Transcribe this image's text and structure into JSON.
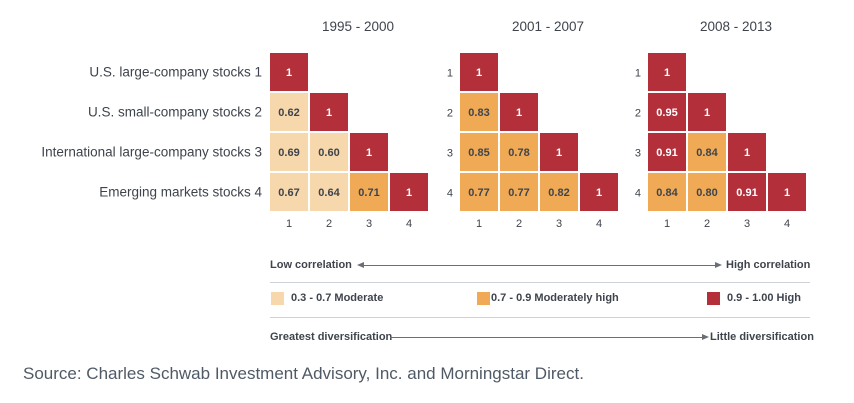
{
  "chart_data": {
    "type": "heatmap",
    "panels": [
      {
        "title": "1995 - 2000",
        "row_labels": [
          "U.S. large-company stocks 1",
          "U.S. small-company stocks 2",
          "International large-company stocks 3",
          "Emerging markets stocks 4"
        ],
        "col_labels": [
          "1",
          "2",
          "3",
          "4"
        ],
        "matrix": [
          [
            "1"
          ],
          [
            "0.62",
            "1"
          ],
          [
            "0.69",
            "0.60",
            "1"
          ],
          [
            "0.67",
            "0.64",
            "0.71",
            "1"
          ]
        ]
      },
      {
        "title": "2001 - 2007",
        "row_labels": [
          "1",
          "2",
          "3",
          "4"
        ],
        "col_labels": [
          "1",
          "2",
          "3",
          "4"
        ],
        "matrix": [
          [
            "1"
          ],
          [
            "0.83",
            "1"
          ],
          [
            "0.85",
            "0.78",
            "1"
          ],
          [
            "0.77",
            "0.77",
            "0.82",
            "1"
          ]
        ]
      },
      {
        "title": "2008 - 2013",
        "row_labels": [
          "1",
          "2",
          "3",
          "4"
        ],
        "col_labels": [
          "1",
          "2",
          "3",
          "4"
        ],
        "matrix": [
          [
            "1"
          ],
          [
            "0.95",
            "1"
          ],
          [
            "0.91",
            "0.84",
            "1"
          ],
          [
            "0.84",
            "0.80",
            "0.91",
            "1"
          ]
        ]
      }
    ],
    "legend": [
      {
        "label": "0.3 - 0.7 Moderate",
        "color": "#f7d7ac",
        "min": 0.3,
        "max": 0.7
      },
      {
        "label": "0.7 - 0.9  Moderately high",
        "color": "#f0aa55",
        "min": 0.7,
        "max": 0.9
      },
      {
        "label": "0.9 - 1.00  High",
        "color": "#b3303a",
        "min": 0.9,
        "max": 1.0
      }
    ]
  },
  "scale": {
    "correlation_low": "Low correlation",
    "correlation_high": "High correlation",
    "diversification_high": "Greatest diversification",
    "diversification_low": "Little diversification"
  },
  "source": "Source: Charles Schwab Investment Advisory, Inc. and Morningstar Direct.",
  "colors": {
    "moderate": "#f7d7ac",
    "moderately_high": "#f0aa55",
    "high": "#b3303a",
    "text_dark": "#3f444c"
  }
}
